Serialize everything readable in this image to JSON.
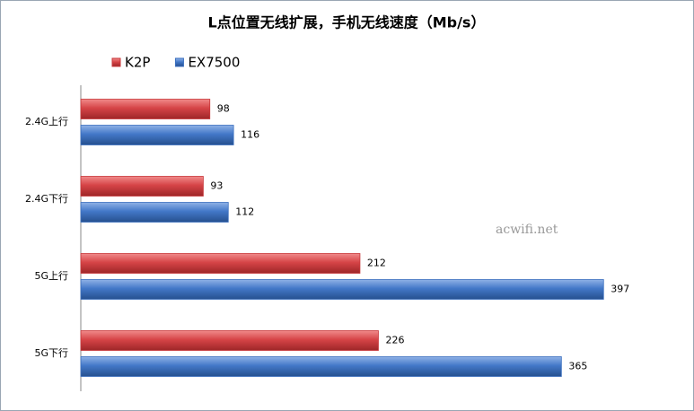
{
  "chart_data": {
    "type": "hbar",
    "title": "L点位置无线扩展，手机无线速度（Mb/s）",
    "categories": [
      "2.4G上行",
      "2.4G下行",
      "5G上行",
      "5G下行"
    ],
    "series": [
      {
        "name": "K2P",
        "color": "#c8373a",
        "values": [
          98,
          93,
          212,
          226
        ]
      },
      {
        "name": "EX7500",
        "color": "#3b6fbf",
        "values": [
          116,
          112,
          397,
          365
        ]
      }
    ],
    "xlim": [
      0,
      450
    ],
    "legend": "top-left",
    "annotation": "acwifi.net"
  }
}
